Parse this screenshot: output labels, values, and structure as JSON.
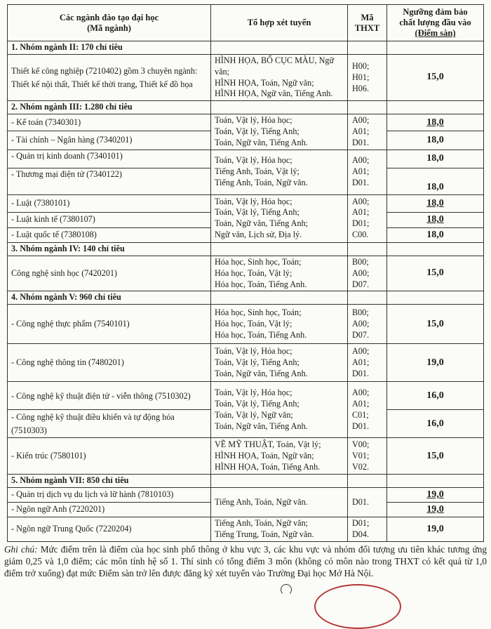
{
  "header": {
    "col1": "Các ngành đào tạo đại học (Mã ngành)",
    "col1_line1": "Các ngành đào tạo đại học",
    "col1_line2": "(Mã ngành)",
    "col2": "Tổ hợp xét tuyển",
    "col3_line1": "Mã",
    "col3_line2": "THXT",
    "col4_line1": "Ngưỡng đảm bảo",
    "col4_line2": "chất lượng đầu vào",
    "col4_line3": "(Điểm sàn)"
  },
  "groups": [
    {
      "title": "1. Nhóm ngành II: 170 chỉ tiêu"
    },
    {
      "title": "2. Nhóm ngành III: 1.280 chỉ tiêu"
    },
    {
      "title": "3. Nhóm ngành IV: 140 chỉ tiêu"
    },
    {
      "title": "4. Nhóm ngành V: 960 chỉ tiêu"
    },
    {
      "title": "5. Nhóm ngành VII: 850 chỉ tiêu"
    }
  ],
  "majors": [
    {
      "name": "Thiết kế công nghiệp (7210402) gồm 3 chuyên ngành: Thiết kế nội thất, Thiết kế thời trang, Thiết kế đồ họa",
      "score": "15,0"
    },
    {
      "name": "- Kế toán (7340301)",
      "score": "18,0"
    },
    {
      "name": "- Tài chính – Ngân hàng (7340201)",
      "score": "18,0"
    },
    {
      "name": "- Quản trị kinh doanh (7340101)",
      "score": "18,0"
    },
    {
      "name": "- Thương mại điện tử (7340122)",
      "score": "18,0"
    },
    {
      "name": "- Luật (7380101)",
      "score": "18,0"
    },
    {
      "name": "- Luật kinh tế (7380107)",
      "score": "18,0"
    },
    {
      "name": "- Luật quốc tế (7380108)",
      "score": "18,0"
    },
    {
      "name": "Công nghệ sinh học (7420201)",
      "score": "15,0"
    },
    {
      "name": "- Công nghệ thực phẩm (7540101)",
      "score": "15,0"
    },
    {
      "name": "- Công nghệ thông tin (7480201)",
      "score": "19,0"
    },
    {
      "name": "- Công nghệ kỹ thuật điện tử - viễn thông (7510302)",
      "score": "16,0"
    },
    {
      "name": "- Công nghệ kỹ thuật điều khiển và tự động hóa (7510303)",
      "score": "16,0"
    },
    {
      "name": "- Kiến trúc (7580101)",
      "score": "15,0"
    },
    {
      "name": "- Quản trị dịch vụ du lịch và lữ hành (7810103)",
      "score": "19,0"
    },
    {
      "name": "- Ngôn ngữ Anh (7220201)",
      "score": "19,0"
    },
    {
      "name": "- Ngôn ngữ Trung Quốc (7220204)",
      "score": "19,0"
    }
  ],
  "combos": [
    {
      "subjects": [
        "HÌNH HỌA, BỐ CỤC MÀU, Ngữ văn;",
        "HÌNH HỌA, Toán, Ngữ văn;",
        "HÌNH HỌA, Ngữ văn, Tiếng Anh."
      ],
      "codes": [
        "H00;",
        "H01;",
        "H06."
      ]
    },
    {
      "subjects": [
        "Toán, Vật lý, Hóa học;",
        "Toán, Vật lý, Tiếng Anh;",
        "Toán, Ngữ văn, Tiếng Anh."
      ],
      "codes": [
        "A00;",
        "A01;",
        "D01."
      ]
    },
    {
      "subjects": [
        "Toán, Vật lý, Hóa học;",
        "Tiếng Anh, Toán, Vật lý;",
        "Tiếng Anh, Toán, Ngữ văn."
      ],
      "codes": [
        "A00;",
        "A01;",
        "D01."
      ]
    },
    {
      "subjects": [
        "Toán, Vật lý, Hóa học;",
        "Toán, Vật lý, Tiếng Anh;",
        "Toán, Ngữ văn, Tiếng Anh;",
        "Ngữ văn, Lịch sử, Địa lý."
      ],
      "codes": [
        "A00;",
        "A01;",
        "D01;",
        "C00."
      ]
    },
    {
      "subjects": [
        "Hóa học, Sinh học, Toán;",
        "Hóa học, Toán, Vật lý;",
        "Hóa học, Toán, Tiếng Anh."
      ],
      "codes": [
        "B00;",
        "A00;",
        "D07."
      ]
    },
    {
      "subjects": [
        "Hóa học, Sinh học, Toán;",
        "Hóa học, Toán, Vật lý;",
        "Hóa học, Toán, Tiếng Anh."
      ],
      "codes": [
        "B00;",
        "A00;",
        "D07."
      ]
    },
    {
      "subjects": [
        "Toán, Vật lý, Hóa học;",
        "Toán, Vật lý, Tiếng Anh;",
        "Toán, Ngữ văn, Tiếng Anh."
      ],
      "codes": [
        "A00;",
        "A01;",
        "D01."
      ]
    },
    {
      "subjects": [
        "Toán, Vật lý, Hóa học;",
        "Toán, Vật lý, Tiếng Anh;",
        "Toán, Vật lý, Ngữ văn;",
        "Toán, Ngữ văn, Tiếng Anh."
      ],
      "codes": [
        "A00;",
        "A01;",
        "C01;",
        "D01."
      ]
    },
    {
      "subjects": [
        "VẼ MỸ THUẬT, Toán, Vật lý;",
        "HÌNH HỌA, Toán, Ngữ văn;",
        "HÌNH HỌA, Toán, Tiếng Anh."
      ],
      "codes": [
        "V00;",
        "V01;",
        "V02."
      ]
    },
    {
      "subjects": [
        "Tiếng Anh, Toán, Ngữ văn."
      ],
      "codes": [
        "D01."
      ]
    },
    {
      "subjects": [
        "Tiếng Anh, Toán, Ngữ văn;",
        "Tiếng Trung, Toán, Ngữ văn."
      ],
      "codes": [
        "D01;",
        "D04."
      ]
    }
  ],
  "note": {
    "label": "Ghi chú:",
    "text": " Mức điểm trên là điểm của học sinh phổ thông ở khu vực 3, các khu vực và nhóm đối tượng ưu tiên khác tương ứng giảm 0,25 và 1,0 điểm; các môn tính hệ số 1. Thí sinh có tổng điểm 3 môn (không có môn nào trong THXT có kết quả từ 1,0 điểm trở xuống) đạt mức Điểm sàn trở lên được đăng ký xét tuyển vào Trường Đại học Mở Hà Nội."
  },
  "colors": {
    "border": "#333333",
    "stamp": "#b33a3a",
    "paper": "#fbfbf8"
  }
}
